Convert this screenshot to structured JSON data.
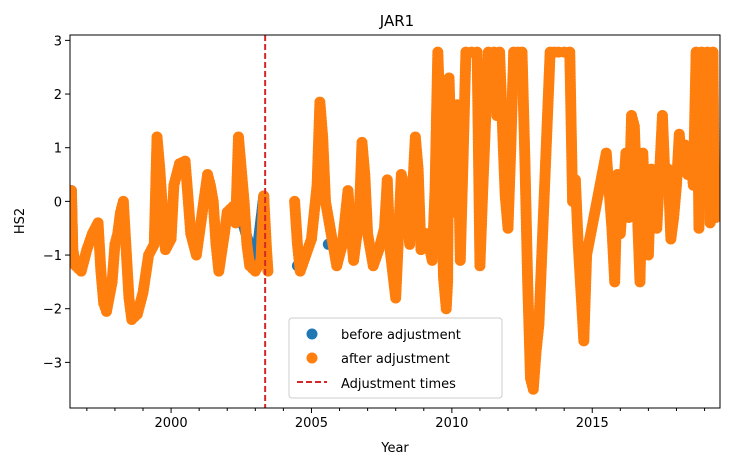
{
  "chart_data": {
    "type": "scatter",
    "title": "JAR1",
    "xlabel": "Year",
    "ylabel": "HS2",
    "xlim": [
      1996.4,
      2019.55
    ],
    "ylim": [
      -3.85,
      3.1
    ],
    "xticks": [
      2000,
      2005,
      2010,
      2015
    ],
    "xtick_labels": [
      "2000",
      "2005",
      "2010",
      "2015"
    ],
    "yticks": [
      -3,
      -2,
      -1,
      0,
      1,
      2,
      3
    ],
    "ytick_labels": [
      "−3",
      "−2",
      "−1",
      "0",
      "1",
      "2",
      "3"
    ],
    "grid": false,
    "legend_position": "lower-center",
    "colors": {
      "before": "#1f77b4",
      "after": "#ff7f0e",
      "adjustment": "#d62728"
    },
    "adjustment_times": [
      2003.35
    ],
    "series": [
      {
        "name": "before adjustment",
        "points": [
          [
            1996.45,
            0.2
          ],
          [
            1996.5,
            -1.0
          ],
          [
            2002.5,
            -0.3
          ],
          [
            2003.0,
            -1.2
          ],
          [
            2003.3,
            0.1
          ],
          [
            2003.35,
            -0.9
          ],
          [
            2004.5,
            -1.2
          ],
          [
            2005.6,
            -0.8
          ]
        ]
      },
      {
        "name": "after adjustment",
        "points": [
          [
            1996.45,
            0.2
          ],
          [
            1996.5,
            -0.9
          ],
          [
            1996.6,
            -1.2
          ],
          [
            1996.8,
            -1.3
          ],
          [
            1997.0,
            -0.9
          ],
          [
            1997.2,
            -0.6
          ],
          [
            1997.4,
            -0.4
          ],
          [
            1997.5,
            -1.3
          ],
          [
            1997.6,
            -1.9
          ],
          [
            1997.7,
            -2.05
          ],
          [
            1997.9,
            -1.5
          ],
          [
            1998.0,
            -0.8
          ],
          [
            1998.1,
            -0.6
          ],
          [
            1998.2,
            -0.2
          ],
          [
            1998.3,
            0.0
          ],
          [
            1998.4,
            -0.9
          ],
          [
            1998.5,
            -1.8
          ],
          [
            1998.6,
            -2.2
          ],
          [
            1998.8,
            -2.1
          ],
          [
            1999.0,
            -1.7
          ],
          [
            1999.2,
            -1.0
          ],
          [
            1999.4,
            -0.8
          ],
          [
            1999.5,
            1.2
          ],
          [
            1999.6,
            0.6
          ],
          [
            1999.7,
            -0.2
          ],
          [
            1999.8,
            -0.9
          ],
          [
            2000.0,
            -0.7
          ],
          [
            2000.1,
            0.3
          ],
          [
            2000.3,
            0.7
          ],
          [
            2000.5,
            0.75
          ],
          [
            2000.6,
            0.1
          ],
          [
            2000.7,
            -0.6
          ],
          [
            2000.9,
            -1.0
          ],
          [
            2001.3,
            0.5
          ],
          [
            2001.4,
            0.3
          ],
          [
            2001.5,
            0.0
          ],
          [
            2001.6,
            -0.8
          ],
          [
            2001.7,
            -1.3
          ],
          [
            2001.9,
            -0.6
          ],
          [
            2002.0,
            -0.2
          ],
          [
            2002.2,
            -0.1
          ],
          [
            2002.3,
            -0.4
          ],
          [
            2002.4,
            1.2
          ],
          [
            2002.5,
            0.6
          ],
          [
            2002.6,
            0.0
          ],
          [
            2002.7,
            -0.8
          ],
          [
            2002.8,
            -1.2
          ],
          [
            2003.0,
            -1.3
          ],
          [
            2003.2,
            -1.1
          ],
          [
            2003.3,
            0.1
          ],
          [
            2003.4,
            -0.9
          ],
          [
            2003.45,
            -1.3
          ],
          [
            2004.4,
            0.0
          ],
          [
            2004.5,
            -0.8
          ],
          [
            2004.6,
            -1.3
          ],
          [
            2004.8,
            -1.0
          ],
          [
            2005.0,
            -0.7
          ],
          [
            2005.2,
            0.3
          ],
          [
            2005.3,
            1.85
          ],
          [
            2005.4,
            1.2
          ],
          [
            2005.5,
            0.0
          ],
          [
            2005.7,
            -0.6
          ],
          [
            2005.9,
            -1.2
          ],
          [
            2006.1,
            -0.8
          ],
          [
            2006.3,
            0.2
          ],
          [
            2006.4,
            -0.5
          ],
          [
            2006.5,
            -1.1
          ],
          [
            2006.7,
            -0.3
          ],
          [
            2006.8,
            1.1
          ],
          [
            2006.9,
            0.5
          ],
          [
            2007.0,
            -0.6
          ],
          [
            2007.2,
            -1.2
          ],
          [
            2007.4,
            -0.9
          ],
          [
            2007.6,
            -0.5
          ],
          [
            2007.7,
            0.4
          ],
          [
            2007.8,
            -0.9
          ],
          [
            2008.0,
            -1.8
          ],
          [
            2008.2,
            0.5
          ],
          [
            2008.3,
            0.3
          ],
          [
            2008.5,
            -0.8
          ],
          [
            2008.7,
            1.2
          ],
          [
            2008.8,
            0.6
          ],
          [
            2008.9,
            -0.9
          ],
          [
            2009.1,
            -0.6
          ],
          [
            2009.3,
            -1.1
          ],
          [
            2009.4,
            0.2
          ],
          [
            2009.5,
            2.78
          ],
          [
            2009.6,
            1.3
          ],
          [
            2009.7,
            -1.4
          ],
          [
            2009.8,
            -2.0
          ],
          [
            2009.85,
            -1.5
          ],
          [
            2009.9,
            2.3
          ],
          [
            2010.0,
            0.5
          ],
          [
            2010.1,
            -0.2
          ],
          [
            2010.2,
            1.8
          ],
          [
            2010.3,
            -1.1
          ],
          [
            2010.4,
            0.8
          ],
          [
            2010.5,
            2.78
          ],
          [
            2010.7,
            2.78
          ],
          [
            2010.9,
            2.78
          ],
          [
            2011.0,
            -1.2
          ],
          [
            2011.1,
            0.2
          ],
          [
            2011.3,
            2.78
          ],
          [
            2011.5,
            2.78
          ],
          [
            2011.6,
            1.6
          ],
          [
            2011.7,
            2.78
          ],
          [
            2011.9,
            0.1
          ],
          [
            2012.0,
            -0.5
          ],
          [
            2012.1,
            1.0
          ],
          [
            2012.2,
            2.78
          ],
          [
            2012.5,
            2.78
          ],
          [
            2012.6,
            0.8
          ],
          [
            2012.7,
            -1.5
          ],
          [
            2012.8,
            -3.3
          ],
          [
            2012.9,
            -3.5
          ],
          [
            2013.0,
            -2.8
          ],
          [
            2013.1,
            -2.3
          ],
          [
            2013.5,
            2.78
          ],
          [
            2013.8,
            2.78
          ],
          [
            2014.0,
            2.78
          ],
          [
            2014.2,
            2.78
          ],
          [
            2014.3,
            0.0
          ],
          [
            2014.4,
            0.4
          ],
          [
            2014.5,
            -0.8
          ],
          [
            2014.6,
            -1.7
          ],
          [
            2014.7,
            -2.6
          ],
          [
            2014.8,
            -1.0
          ],
          [
            2015.5,
            0.9
          ],
          [
            2015.6,
            0.2
          ],
          [
            2015.7,
            -0.5
          ],
          [
            2015.8,
            -1.5
          ],
          [
            2015.9,
            0.5
          ],
          [
            2016.0,
            -0.6
          ],
          [
            2016.2,
            0.9
          ],
          [
            2016.3,
            -0.3
          ],
          [
            2016.4,
            1.6
          ],
          [
            2016.5,
            1.4
          ],
          [
            2016.6,
            -0.1
          ],
          [
            2016.7,
            -1.5
          ],
          [
            2016.8,
            0.9
          ],
          [
            2016.9,
            -0.2
          ],
          [
            2017.0,
            -1.0
          ],
          [
            2017.1,
            0.6
          ],
          [
            2017.3,
            -0.5
          ],
          [
            2017.5,
            1.6
          ],
          [
            2017.6,
            0.3
          ],
          [
            2017.7,
            0.6
          ],
          [
            2017.8,
            -0.7
          ],
          [
            2017.9,
            -0.3
          ],
          [
            2018.0,
            0.3
          ],
          [
            2018.1,
            1.25
          ],
          [
            2018.2,
            0.6
          ],
          [
            2018.3,
            1.05
          ],
          [
            2018.4,
            0.5
          ],
          [
            2018.5,
            0.8
          ],
          [
            2018.6,
            0.3
          ],
          [
            2018.7,
            2.78
          ],
          [
            2018.75,
            1.9
          ],
          [
            2018.8,
            -0.5
          ],
          [
            2018.9,
            2.78
          ],
          [
            2019.0,
            0.8
          ],
          [
            2019.1,
            2.78
          ],
          [
            2019.2,
            -0.4
          ],
          [
            2019.3,
            2.78
          ],
          [
            2019.35,
            0.0
          ],
          [
            2019.4,
            -0.3
          ]
        ]
      }
    ],
    "legend": {
      "entries": [
        {
          "label": "before adjustment",
          "kind": "marker",
          "color": "#1f77b4"
        },
        {
          "label": "after adjustment",
          "kind": "marker",
          "color": "#ff7f0e"
        },
        {
          "label": "Adjustment times",
          "kind": "dashed-line",
          "color": "#d62728"
        }
      ]
    }
  }
}
